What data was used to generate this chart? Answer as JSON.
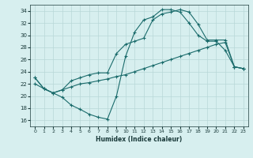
{
  "xlabel": "Humidex (Indice chaleur)",
  "background_color": "#d7efef",
  "grid_color": "#b8d8d8",
  "line_color": "#1a6b6b",
  "xlim": [
    -0.5,
    23.5
  ],
  "ylim": [
    15,
    35
  ],
  "xticks": [
    0,
    1,
    2,
    3,
    4,
    5,
    6,
    7,
    8,
    9,
    10,
    11,
    12,
    13,
    14,
    15,
    16,
    17,
    18,
    19,
    20,
    21,
    22,
    23
  ],
  "yticks": [
    16,
    18,
    20,
    22,
    24,
    26,
    28,
    30,
    32,
    34
  ],
  "curve1_x": [
    0,
    1,
    2,
    3,
    4,
    5,
    6,
    7,
    8,
    9,
    10,
    11,
    12,
    13,
    14,
    15,
    16,
    17,
    18,
    19,
    20,
    21,
    22,
    23
  ],
  "curve1_y": [
    23.0,
    21.2,
    20.5,
    19.8,
    18.5,
    17.8,
    17.0,
    16.5,
    16.2,
    20.0,
    26.5,
    30.5,
    32.5,
    33.0,
    34.2,
    34.2,
    33.8,
    32.0,
    30.0,
    29.0,
    29.0,
    27.5,
    24.8,
    24.5
  ],
  "curve2_x": [
    0,
    1,
    2,
    3,
    4,
    5,
    6,
    7,
    8,
    9,
    10,
    11,
    12,
    13,
    14,
    15,
    16,
    17,
    18,
    19,
    20,
    21,
    22,
    23
  ],
  "curve2_y": [
    23.0,
    21.2,
    20.5,
    21.0,
    22.5,
    23.0,
    23.5,
    23.8,
    23.8,
    27.0,
    28.5,
    29.0,
    29.5,
    32.5,
    33.5,
    33.8,
    34.2,
    33.8,
    31.8,
    29.2,
    29.2,
    29.2,
    24.8,
    24.5
  ],
  "curve3_x": [
    0,
    1,
    2,
    3,
    4,
    5,
    6,
    7,
    8,
    9,
    10,
    11,
    12,
    13,
    14,
    15,
    16,
    17,
    18,
    19,
    20,
    21,
    22,
    23
  ],
  "curve3_y": [
    22.0,
    21.2,
    20.5,
    21.0,
    21.5,
    22.0,
    22.2,
    22.5,
    22.8,
    23.2,
    23.5,
    24.0,
    24.5,
    25.0,
    25.5,
    26.0,
    26.5,
    27.0,
    27.5,
    28.0,
    28.5,
    28.8,
    24.8,
    24.5
  ]
}
